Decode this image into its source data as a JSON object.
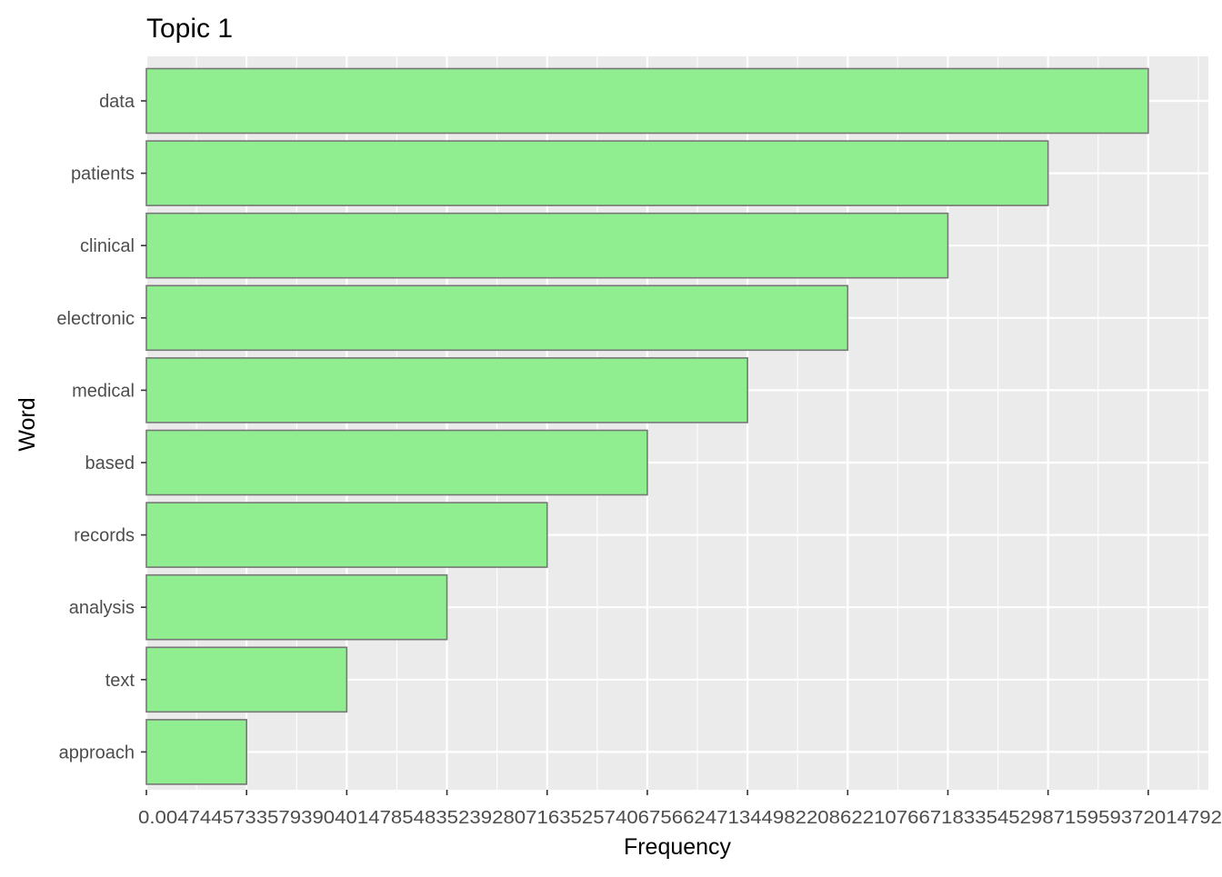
{
  "chart_data": {
    "type": "bar",
    "orientation": "horizontal",
    "title": "Topic 1",
    "xlabel": "Frequency",
    "ylabel": "Word",
    "categories": [
      "data",
      "patients",
      "clinical",
      "electronic",
      "medical",
      "based",
      "records",
      "analysis",
      "text",
      "approach"
    ],
    "values": [
      10,
      9,
      8,
      7,
      6,
      5,
      4,
      3,
      2,
      1
    ],
    "xlim": [
      0,
      10.6
    ],
    "x_tick_text": "0.00474457335793904014785483523928071635257406756624713449822086221076671833545298715959372014792",
    "grid": true,
    "legend": "none",
    "colors": {
      "bar_fill": "#90EE90",
      "bar_stroke": "#777777",
      "panel_background": "#EBEBEB",
      "grid": "#FFFFFF",
      "axis_text": "#4D4D4D",
      "title_text": "#000000"
    }
  }
}
